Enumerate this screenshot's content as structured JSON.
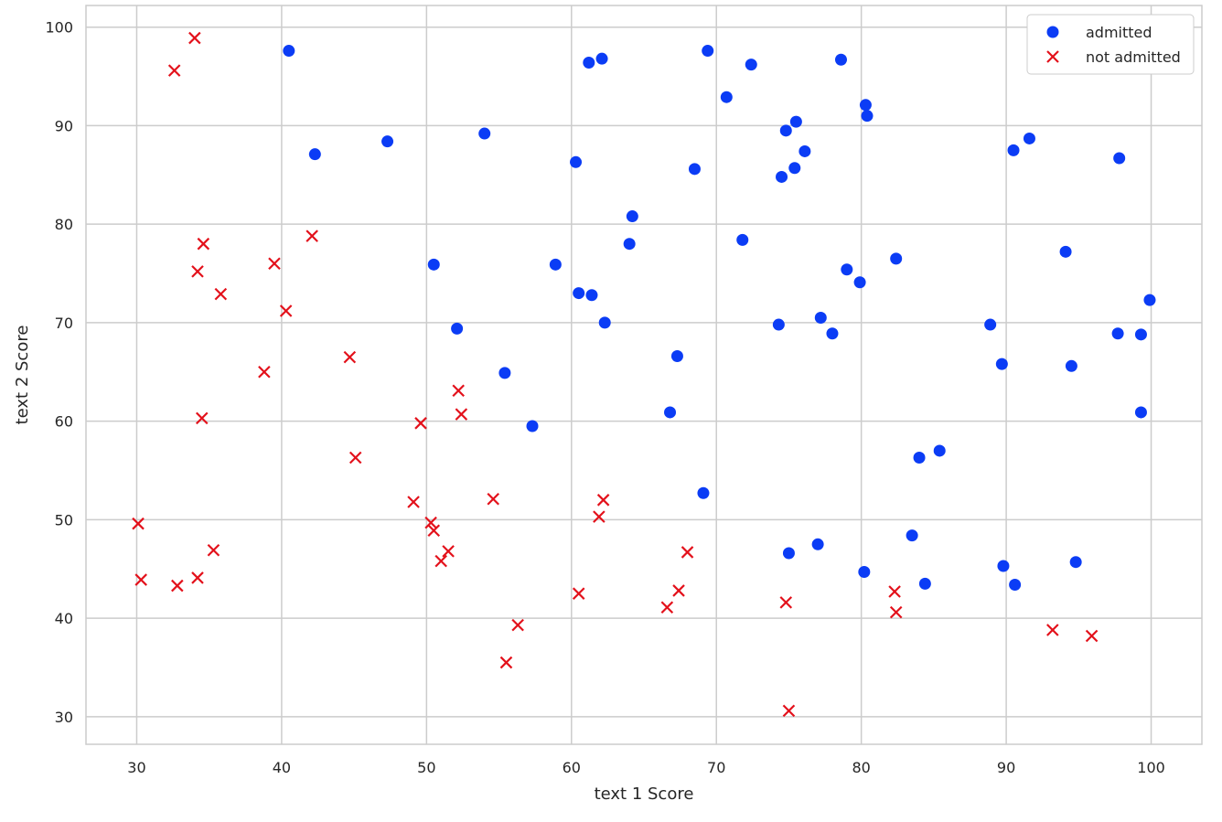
{
  "chart_data": {
    "type": "scatter",
    "title": "",
    "xlabel": "text 1 Score",
    "ylabel": "text 2 Score",
    "xlim": [
      26.5,
      103.5
    ],
    "ylim": [
      27.2,
      102.2
    ],
    "xticks": [
      30,
      40,
      50,
      60,
      70,
      80,
      90,
      100
    ],
    "yticks": [
      30,
      40,
      50,
      60,
      70,
      80,
      90,
      100
    ],
    "grid": true,
    "legend_position": "top-right",
    "series": [
      {
        "name": "admitted",
        "marker": "circle",
        "color": "#0b3cf5",
        "points": [
          [
            40.5,
            97.6
          ],
          [
            42.3,
            87.1
          ],
          [
            47.3,
            88.4
          ],
          [
            50.5,
            75.9
          ],
          [
            52.1,
            69.4
          ],
          [
            54.0,
            89.2
          ],
          [
            55.4,
            64.9
          ],
          [
            57.3,
            59.5
          ],
          [
            58.9,
            75.9
          ],
          [
            60.3,
            86.3
          ],
          [
            60.5,
            73.0
          ],
          [
            61.2,
            96.4
          ],
          [
            61.4,
            72.8
          ],
          [
            62.1,
            96.8
          ],
          [
            62.3,
            70.0
          ],
          [
            64.0,
            78.0
          ],
          [
            64.2,
            80.8
          ],
          [
            66.8,
            60.9
          ],
          [
            67.3,
            66.6
          ],
          [
            68.5,
            85.6
          ],
          [
            69.1,
            52.7
          ],
          [
            69.4,
            97.6
          ],
          [
            70.7,
            92.9
          ],
          [
            71.8,
            78.4
          ],
          [
            72.4,
            96.2
          ],
          [
            74.3,
            69.8
          ],
          [
            74.5,
            84.8
          ],
          [
            74.8,
            89.5
          ],
          [
            75.0,
            46.6
          ],
          [
            75.4,
            85.7
          ],
          [
            75.5,
            90.4
          ],
          [
            76.1,
            87.4
          ],
          [
            77.0,
            47.5
          ],
          [
            77.2,
            70.5
          ],
          [
            78.0,
            68.9
          ],
          [
            78.6,
            96.7
          ],
          [
            79.0,
            75.4
          ],
          [
            79.9,
            74.1
          ],
          [
            80.2,
            44.7
          ],
          [
            80.3,
            92.1
          ],
          [
            80.4,
            91.0
          ],
          [
            82.4,
            76.5
          ],
          [
            83.5,
            48.4
          ],
          [
            84.0,
            56.3
          ],
          [
            84.4,
            43.5
          ],
          [
            85.4,
            57.0
          ],
          [
            88.9,
            69.8
          ],
          [
            89.7,
            65.8
          ],
          [
            89.8,
            45.3
          ],
          [
            90.5,
            87.5
          ],
          [
            90.6,
            43.4
          ],
          [
            91.6,
            88.7
          ],
          [
            94.1,
            77.2
          ],
          [
            94.5,
            65.6
          ],
          [
            94.8,
            45.7
          ],
          [
            97.7,
            68.9
          ],
          [
            97.8,
            86.7
          ],
          [
            99.3,
            68.8
          ],
          [
            99.3,
            60.9
          ],
          [
            99.9,
            72.3
          ]
        ]
      },
      {
        "name": "not admitted",
        "marker": "x",
        "color": "#e3111b",
        "points": [
          [
            30.1,
            49.6
          ],
          [
            30.3,
            43.9
          ],
          [
            32.6,
            95.6
          ],
          [
            32.8,
            43.3
          ],
          [
            34.0,
            98.9
          ],
          [
            34.2,
            44.1
          ],
          [
            34.2,
            75.2
          ],
          [
            34.5,
            60.3
          ],
          [
            34.6,
            78.0
          ],
          [
            35.3,
            46.9
          ],
          [
            35.8,
            72.9
          ],
          [
            38.8,
            65.0
          ],
          [
            39.5,
            76.0
          ],
          [
            40.3,
            71.2
          ],
          [
            42.1,
            78.8
          ],
          [
            44.7,
            66.5
          ],
          [
            45.1,
            56.3
          ],
          [
            49.1,
            51.8
          ],
          [
            49.6,
            59.8
          ],
          [
            50.3,
            49.7
          ],
          [
            50.5,
            48.9
          ],
          [
            51.0,
            45.8
          ],
          [
            51.5,
            46.8
          ],
          [
            52.2,
            63.1
          ],
          [
            52.4,
            60.7
          ],
          [
            54.6,
            52.1
          ],
          [
            55.5,
            35.5
          ],
          [
            56.3,
            39.3
          ],
          [
            60.5,
            42.5
          ],
          [
            61.9,
            50.3
          ],
          [
            62.2,
            52.0
          ],
          [
            66.6,
            41.1
          ],
          [
            67.4,
            42.8
          ],
          [
            68.0,
            46.7
          ],
          [
            74.8,
            41.6
          ],
          [
            75.0,
            30.6
          ],
          [
            82.3,
            42.7
          ],
          [
            82.4,
            40.6
          ],
          [
            93.2,
            38.8
          ],
          [
            95.9,
            38.2
          ]
        ]
      }
    ]
  }
}
